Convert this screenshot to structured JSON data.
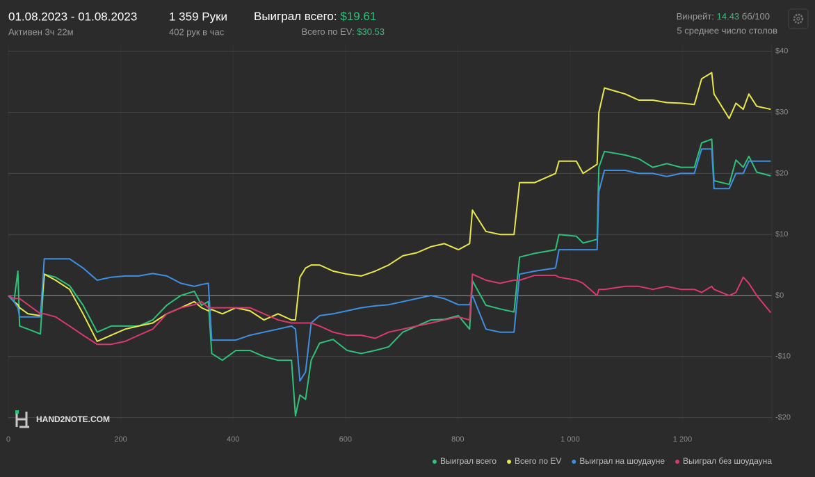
{
  "header": {
    "date_range": "01.08.2023 - 01.08.2023",
    "active": "Активен 3ч 22м",
    "hands": "1 359 Руки",
    "hands_per_hour": "402 рук в час",
    "won_label": "Выиграл всего:",
    "won_value": "$19.61",
    "ev_label": "Всего по EV:",
    "ev_value": "$30.53",
    "winrate_label": "Винрейт:",
    "winrate_value": "14.43",
    "winrate_unit": "бб/100",
    "avg_tables": "5 среднее число столов"
  },
  "watermark": "HAND2NOTE.COM",
  "chart_data": {
    "type": "line",
    "x": [
      0,
      10,
      17,
      20,
      35,
      57,
      64,
      84,
      109,
      133,
      158,
      183,
      208,
      232,
      257,
      282,
      307,
      331,
      344,
      356,
      362,
      381,
      405,
      430,
      455,
      480,
      504,
      511,
      519,
      529,
      539,
      554,
      578,
      603,
      628,
      653,
      677,
      702,
      727,
      752,
      776,
      801,
      821,
      826,
      850,
      875,
      900,
      910,
      937,
      974,
      980,
      1011,
      1023,
      1048,
      1051,
      1061,
      1098,
      1122,
      1147,
      1172,
      1197,
      1221,
      1234,
      1252,
      1256,
      1283,
      1295,
      1308,
      1318,
      1332,
      1357
    ],
    "series": [
      {
        "name": "Выиграл всего",
        "color": "#2fc07a",
        "values": [
          0,
          -1,
          4,
          -5,
          -5.5,
          -6.3,
          3.5,
          3,
          1.6,
          -1.6,
          -6,
          -5,
          -5,
          -5,
          -4,
          -1.6,
          0,
          0.7,
          -1.6,
          -1,
          -9.5,
          -10.6,
          -9,
          -9,
          -10,
          -10.6,
          -10.6,
          -19.7,
          -16.3,
          -17,
          -10.6,
          -7.8,
          -7.2,
          -9,
          -9.5,
          -9,
          -8.4,
          -6,
          -5,
          -4,
          -3.9,
          -3.3,
          -5.5,
          2.4,
          -1.6,
          -2.2,
          -2.7,
          6.3,
          6.9,
          7.5,
          10,
          9.7,
          8.6,
          9.2,
          21,
          23.6,
          23,
          22.4,
          21,
          21.6,
          21,
          21,
          25,
          25.6,
          18.8,
          18.2,
          22.2,
          21,
          22.8,
          20.2,
          19.6
        ]
      },
      {
        "name": "Всего по EV",
        "color": "#e8e84e",
        "values": [
          0,
          -1,
          -1.5,
          -2,
          -3,
          -3.3,
          3.5,
          2.5,
          1,
          -3,
          -7.5,
          -6.5,
          -5.5,
          -5,
          -4.5,
          -3,
          -2,
          -1,
          -2,
          -2.5,
          -2.3,
          -3,
          -2,
          -2.5,
          -4,
          -3,
          -4,
          -4,
          3,
          4.5,
          5,
          5,
          4,
          3.5,
          3.2,
          4,
          5,
          6.5,
          7,
          8,
          8.5,
          7.5,
          8.5,
          14,
          10.5,
          10,
          10,
          18.5,
          18.5,
          20,
          22,
          22,
          20,
          21.5,
          30,
          34,
          33,
          32,
          32,
          31.6,
          31.5,
          31.3,
          35.5,
          36.5,
          33,
          29,
          31.5,
          30.5,
          33,
          31,
          30.5
        ]
      },
      {
        "name": "Выиграл на шоудауне",
        "color": "#3f8fe2",
        "values": [
          0,
          -1,
          -2,
          -3.5,
          -3.5,
          -3.5,
          6,
          6,
          6,
          4.5,
          2.5,
          3,
          3.2,
          3.2,
          3.6,
          3.2,
          2,
          1.5,
          1.8,
          2,
          -7.3,
          -7.3,
          -7.3,
          -6.5,
          -6,
          -5.5,
          -5,
          -5.5,
          -14,
          -12.5,
          -4.5,
          -3.3,
          -3,
          -2.5,
          -2,
          -1.7,
          -1.5,
          -1,
          -0.5,
          0,
          -0.5,
          -1.5,
          -1.5,
          0,
          -5.5,
          -6,
          -6,
          3.5,
          4,
          4.5,
          7.5,
          7.5,
          7.5,
          7.5,
          17,
          20.5,
          20.5,
          20,
          20,
          19.5,
          20,
          20,
          24,
          24,
          17.5,
          17.5,
          20,
          20,
          22,
          22,
          22
        ]
      },
      {
        "name": "Выиграл без шоудауна",
        "color": "#d93a6e",
        "values": [
          0,
          -0.5,
          -0.5,
          -0.5,
          -1.5,
          -3,
          -3,
          -3.5,
          -5,
          -6.5,
          -8,
          -8,
          -7.5,
          -6.5,
          -5.5,
          -3,
          -2,
          -1.5,
          -1,
          -2,
          -2,
          -2,
          -2,
          -2,
          -3,
          -4,
          -4.5,
          -4.5,
          -4.5,
          -4.5,
          -4.5,
          -5,
          -6,
          -6.5,
          -6.5,
          -7,
          -6,
          -5.5,
          -5,
          -4.5,
          -4,
          -3.5,
          -4,
          3.5,
          2.5,
          2,
          2.5,
          2.5,
          3.3,
          3.3,
          3,
          2.5,
          2,
          0,
          1,
          1,
          1.5,
          1.5,
          1,
          1.5,
          1,
          1,
          0.5,
          1.5,
          1,
          0,
          0.5,
          3,
          2,
          0,
          -2.8
        ]
      }
    ],
    "xlim": [
      0,
      1359
    ],
    "ylim": [
      -20.5,
      41
    ],
    "xticks": [
      0,
      200,
      400,
      600,
      800,
      {
        "value": 1000,
        "label": "1 000"
      },
      {
        "value": 1200,
        "label": "1 200"
      }
    ],
    "yticks": [
      {
        "value": -20,
        "label": "-$20"
      },
      {
        "value": -10,
        "label": "-$10"
      },
      {
        "value": 0,
        "label": "$0"
      },
      {
        "value": 10,
        "label": "$10"
      },
      {
        "value": 20,
        "label": "$20"
      },
      {
        "value": 30,
        "label": "$30"
      },
      {
        "value": 40,
        "label": "$40"
      }
    ],
    "grid": true,
    "legend": "bottom-right"
  }
}
